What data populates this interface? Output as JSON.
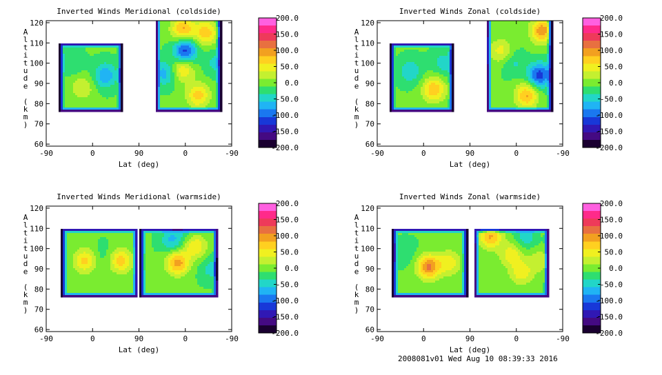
{
  "footer": "2008081v01 Wed Aug 10 08:39:33 2016",
  "colorbar": {
    "labels": [
      "200.0",
      "150.0",
      "100.0",
      "50.0",
      "0.0",
      "-50.0",
      "-100.0",
      "-150.0",
      "-200.0"
    ],
    "range": [
      -200,
      200
    ],
    "colors": [
      "#ff60e0",
      "#ff2a8a",
      "#ee3a5a",
      "#e87040",
      "#f2a020",
      "#ffd020",
      "#f0f020",
      "#c4f030",
      "#7aec30",
      "#2ede70",
      "#22d6c8",
      "#20b4f4",
      "#1a78f0",
      "#1838d8",
      "#3018b4",
      "#440a82",
      "#1a0030"
    ]
  },
  "chart_data": [
    {
      "type": "heatmap",
      "title": "Inverted Winds Meridional (coldside)",
      "xlabel": "Lat (deg)",
      "ylabel": "Altitude (km)",
      "x_tick_labels": [
        "-90",
        "0",
        "90",
        "0",
        "-90"
      ],
      "y_ticks": [
        60,
        70,
        80,
        90,
        100,
        110,
        120
      ],
      "ylim": [
        59,
        121
      ],
      "clim": [
        -200,
        200
      ],
      "segments": [
        [
          -65,
          58
        ],
        [
          122,
          250
        ]
      ],
      "blobs": [
        {
          "x": -20,
          "y": 88,
          "v": 45
        },
        {
          "x": 25,
          "y": 94,
          "v": -70
        },
        {
          "x": -40,
          "y": 100,
          "v": -25
        },
        {
          "x": 180,
          "y": 106,
          "v": -110
        },
        {
          "x": 220,
          "y": 115,
          "v": 85
        },
        {
          "x": 175,
          "y": 117,
          "v": 95
        },
        {
          "x": 205,
          "y": 84,
          "v": 80
        },
        {
          "x": 175,
          "y": 97,
          "v": 70
        },
        {
          "x": 140,
          "y": 95,
          "v": -60
        },
        {
          "x": 240,
          "y": 100,
          "v": -35
        }
      ]
    },
    {
      "type": "heatmap",
      "title": "Inverted Winds Zonal (coldside)",
      "xlabel": "Lat (deg)",
      "ylabel": "Altitude (km)",
      "x_tick_labels": [
        "-90",
        "0",
        "90",
        "0",
        "-90"
      ],
      "y_ticks": [
        60,
        70,
        80,
        90,
        100,
        110,
        120
      ],
      "ylim": [
        59,
        121
      ],
      "clim": [
        -200,
        200
      ],
      "segments": [
        [
          -65,
          58
        ],
        [
          122,
          250
        ]
      ],
      "blobs": [
        {
          "x": 20,
          "y": 87,
          "v": 90
        },
        {
          "x": -25,
          "y": 96,
          "v": -45
        },
        {
          "x": 40,
          "y": 100,
          "v": -40
        },
        {
          "x": 230,
          "y": 116,
          "v": 110
        },
        {
          "x": 200,
          "y": 84,
          "v": 95
        },
        {
          "x": 225,
          "y": 94,
          "v": -110
        },
        {
          "x": 150,
          "y": 106,
          "v": 55
        },
        {
          "x": 175,
          "y": 100,
          "v": -30
        }
      ]
    },
    {
      "type": "heatmap",
      "title": "Inverted Winds Meridional (warmside)",
      "xlabel": "Lat (deg)",
      "ylabel": "Altitude (km)",
      "x_tick_labels": [
        "-90",
        "0",
        "90",
        "0",
        "-90"
      ],
      "y_ticks": [
        60,
        70,
        80,
        90,
        100,
        110,
        120
      ],
      "ylim": [
        59,
        121
      ],
      "clim": [
        -200,
        200
      ],
      "segments": [
        [
          -60,
          88
        ],
        [
          92,
          243
        ]
      ],
      "blobs": [
        {
          "x": -15,
          "y": 94,
          "v": 75
        },
        {
          "x": 55,
          "y": 94,
          "v": 80
        },
        {
          "x": 20,
          "y": 97,
          "v": -15
        },
        {
          "x": 165,
          "y": 93,
          "v": 105
        },
        {
          "x": 200,
          "y": 101,
          "v": 65
        },
        {
          "x": 155,
          "y": 104,
          "v": -55
        },
        {
          "x": 230,
          "y": 90,
          "v": -35
        },
        {
          "x": 180,
          "y": 113,
          "v": -40
        }
      ]
    },
    {
      "type": "heatmap",
      "title": "Inverted Winds Zonal (warmside)",
      "xlabel": "Lat (deg)",
      "ylabel": "Altitude (km)",
      "x_tick_labels": [
        "-90",
        "0",
        "90",
        "0",
        "-90"
      ],
      "y_ticks": [
        60,
        70,
        80,
        90,
        100,
        110,
        120
      ],
      "ylim": [
        59,
        121
      ],
      "clim": [
        -200,
        200
      ],
      "segments": [
        [
          -60,
          85
        ],
        [
          98,
          243
        ]
      ],
      "blobs": [
        {
          "x": 10,
          "y": 91,
          "v": 120
        },
        {
          "x": 50,
          "y": 93,
          "v": 60
        },
        {
          "x": -35,
          "y": 98,
          "v": -20
        },
        {
          "x": 130,
          "y": 106,
          "v": 95
        },
        {
          "x": 225,
          "y": 116,
          "v": 70
        },
        {
          "x": 170,
          "y": 97,
          "v": 60
        },
        {
          "x": 200,
          "y": 106,
          "v": -40
        },
        {
          "x": 190,
          "y": 88,
          "v": 60
        },
        {
          "x": 225,
          "y": 94,
          "v": 40
        }
      ]
    }
  ]
}
